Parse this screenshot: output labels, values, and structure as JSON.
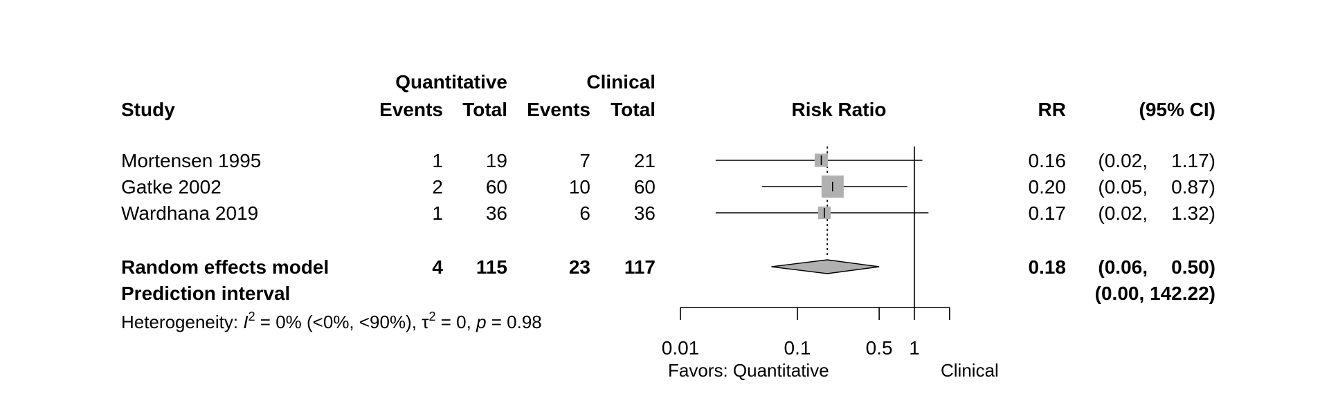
{
  "chart_data": {
    "type": "forest",
    "header": {
      "study": "Study",
      "group1": "Quantitative",
      "group2": "Clinical",
      "events": "Events",
      "total": "Total",
      "plot_title": "Risk Ratio",
      "rr": "RR",
      "ci": "(95% CI)"
    },
    "studies": [
      {
        "name": "Mortensen 1995",
        "e1": "1",
        "n1": "19",
        "e2": "7",
        "n2": "21",
        "rr": 0.16,
        "lower": 0.02,
        "upper": 1.17,
        "rr_text": "0.16",
        "ci_left": "(0.02,",
        "ci_right": "1.17)",
        "weight": 0.6
      },
      {
        "name": "Gatke 2002",
        "e1": "2",
        "n1": "60",
        "e2": "10",
        "n2": "60",
        "rr": 0.2,
        "lower": 0.05,
        "upper": 0.87,
        "rr_text": "0.20",
        "ci_left": "(0.05,",
        "ci_right": "0.87)",
        "weight": 1.0
      },
      {
        "name": "Wardhana 2019",
        "e1": "1",
        "n1": "36",
        "e2": "6",
        "n2": "36",
        "rr": 0.17,
        "lower": 0.02,
        "upper": 1.32,
        "rr_text": "0.17",
        "ci_left": "(0.02,",
        "ci_right": "1.32)",
        "weight": 0.57
      }
    ],
    "pooled": {
      "name": "Random effects model",
      "e1": "4",
      "n1": "115",
      "e2": "23",
      "n2": "117",
      "rr": 0.18,
      "lower": 0.06,
      "upper": 0.5,
      "rr_text": "0.18",
      "ci_left": "(0.06,",
      "ci_right": "0.50)"
    },
    "prediction": {
      "name": "Prediction interval",
      "ci_text": "(0.00, 142.22)",
      "lower": 0.0,
      "upper": 142.22
    },
    "heterogeneity": {
      "prefix": "Heterogeneity: ",
      "i2_symbol": "I",
      "i2_text": " = 0% (<0%, <90%), ",
      "tau_symbol": "τ",
      "tau_text": " = 0, ",
      "p_symbol": "p",
      "p_text": " = 0.98",
      "superscript": "2"
    },
    "x_axis": {
      "scale": "log",
      "ticks": [
        0.01,
        0.1,
        0.5,
        1,
        2
      ],
      "tick_labels": [
        "0.01",
        "0.1",
        "0.5",
        "1",
        ""
      ],
      "reference": 1,
      "left_label": "Favors: Quantitative",
      "right_label": "Clinical"
    },
    "colors": {
      "square": "#b0b0b0",
      "diamond": "#b0b0b0",
      "line": "#000000"
    }
  }
}
